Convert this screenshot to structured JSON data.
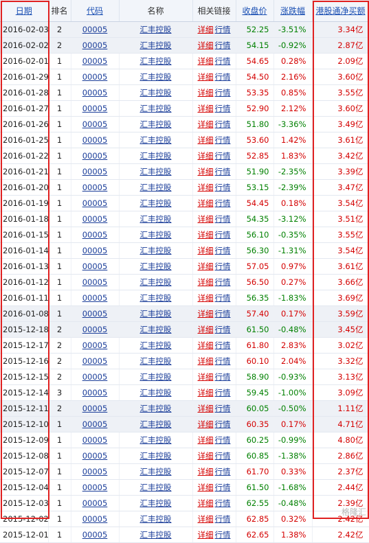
{
  "headers": {
    "date": "日期",
    "rank": "排名",
    "code": "代码",
    "name": "名称",
    "links": "相关链接",
    "close": "收盘价",
    "change": "涨跌幅",
    "net_buy": "港股通净买额"
  },
  "links": {
    "detail": "详细",
    "quote": "行情"
  },
  "colors": {
    "up": "#d40000",
    "down": "#008000",
    "highlight_box": "#e02020"
  },
  "watermark": "格隆汇",
  "rows": [
    {
      "date": "2016-02-03",
      "rank": "2",
      "code": "00005",
      "name": "汇丰控股",
      "close": "52.25",
      "change": "-3.51%",
      "net": "3.34亿",
      "dir": "down"
    },
    {
      "date": "2016-02-02",
      "rank": "2",
      "code": "00005",
      "name": "汇丰控股",
      "close": "54.15",
      "change": "-0.92%",
      "net": "2.87亿",
      "dir": "down"
    },
    {
      "date": "2016-02-01",
      "rank": "1",
      "code": "00005",
      "name": "汇丰控股",
      "close": "54.65",
      "change": "0.28%",
      "net": "2.09亿",
      "dir": "up"
    },
    {
      "date": "2016-01-29",
      "rank": "1",
      "code": "00005",
      "name": "汇丰控股",
      "close": "54.50",
      "change": "2.16%",
      "net": "3.60亿",
      "dir": "up"
    },
    {
      "date": "2016-01-28",
      "rank": "1",
      "code": "00005",
      "name": "汇丰控股",
      "close": "53.35",
      "change": "0.85%",
      "net": "3.55亿",
      "dir": "up"
    },
    {
      "date": "2016-01-27",
      "rank": "1",
      "code": "00005",
      "name": "汇丰控股",
      "close": "52.90",
      "change": "2.12%",
      "net": "3.60亿",
      "dir": "up"
    },
    {
      "date": "2016-01-26",
      "rank": "1",
      "code": "00005",
      "name": "汇丰控股",
      "close": "51.80",
      "change": "-3.36%",
      "net": "3.49亿",
      "dir": "down"
    },
    {
      "date": "2016-01-25",
      "rank": "1",
      "code": "00005",
      "name": "汇丰控股",
      "close": "53.60",
      "change": "1.42%",
      "net": "3.61亿",
      "dir": "up"
    },
    {
      "date": "2016-01-22",
      "rank": "1",
      "code": "00005",
      "name": "汇丰控股",
      "close": "52.85",
      "change": "1.83%",
      "net": "3.42亿",
      "dir": "up"
    },
    {
      "date": "2016-01-21",
      "rank": "1",
      "code": "00005",
      "name": "汇丰控股",
      "close": "51.90",
      "change": "-2.35%",
      "net": "3.39亿",
      "dir": "down"
    },
    {
      "date": "2016-01-20",
      "rank": "1",
      "code": "00005",
      "name": "汇丰控股",
      "close": "53.15",
      "change": "-2.39%",
      "net": "3.47亿",
      "dir": "down"
    },
    {
      "date": "2016-01-19",
      "rank": "1",
      "code": "00005",
      "name": "汇丰控股",
      "close": "54.45",
      "change": "0.18%",
      "net": "3.54亿",
      "dir": "up"
    },
    {
      "date": "2016-01-18",
      "rank": "1",
      "code": "00005",
      "name": "汇丰控股",
      "close": "54.35",
      "change": "-3.12%",
      "net": "3.51亿",
      "dir": "down"
    },
    {
      "date": "2016-01-15",
      "rank": "1",
      "code": "00005",
      "name": "汇丰控股",
      "close": "56.10",
      "change": "-0.35%",
      "net": "3.55亿",
      "dir": "down"
    },
    {
      "date": "2016-01-14",
      "rank": "1",
      "code": "00005",
      "name": "汇丰控股",
      "close": "56.30",
      "change": "-1.31%",
      "net": "3.54亿",
      "dir": "down"
    },
    {
      "date": "2016-01-13",
      "rank": "1",
      "code": "00005",
      "name": "汇丰控股",
      "close": "57.05",
      "change": "0.97%",
      "net": "3.61亿",
      "dir": "up"
    },
    {
      "date": "2016-01-12",
      "rank": "1",
      "code": "00005",
      "name": "汇丰控股",
      "close": "56.50",
      "change": "0.27%",
      "net": "3.66亿",
      "dir": "up"
    },
    {
      "date": "2016-01-11",
      "rank": "1",
      "code": "00005",
      "name": "汇丰控股",
      "close": "56.35",
      "change": "-1.83%",
      "net": "3.69亿",
      "dir": "down"
    },
    {
      "date": "2016-01-08",
      "rank": "1",
      "code": "00005",
      "name": "汇丰控股",
      "close": "57.40",
      "change": "0.17%",
      "net": "3.59亿",
      "dir": "up"
    },
    {
      "date": "2015-12-18",
      "rank": "2",
      "code": "00005",
      "name": "汇丰控股",
      "close": "61.50",
      "change": "-0.48%",
      "net": "3.45亿",
      "dir": "down"
    },
    {
      "date": "2015-12-17",
      "rank": "2",
      "code": "00005",
      "name": "汇丰控股",
      "close": "61.80",
      "change": "2.83%",
      "net": "3.02亿",
      "dir": "up"
    },
    {
      "date": "2015-12-16",
      "rank": "2",
      "code": "00005",
      "name": "汇丰控股",
      "close": "60.10",
      "change": "2.04%",
      "net": "3.32亿",
      "dir": "up"
    },
    {
      "date": "2015-12-15",
      "rank": "2",
      "code": "00005",
      "name": "汇丰控股",
      "close": "58.90",
      "change": "-0.93%",
      "net": "3.13亿",
      "dir": "down"
    },
    {
      "date": "2015-12-14",
      "rank": "3",
      "code": "00005",
      "name": "汇丰控股",
      "close": "59.45",
      "change": "-1.00%",
      "net": "3.09亿",
      "dir": "down"
    },
    {
      "date": "2015-12-11",
      "rank": "2",
      "code": "00005",
      "name": "汇丰控股",
      "close": "60.05",
      "change": "-0.50%",
      "net": "1.11亿",
      "dir": "down"
    },
    {
      "date": "2015-12-10",
      "rank": "1",
      "code": "00005",
      "name": "汇丰控股",
      "close": "60.35",
      "change": "0.17%",
      "net": "4.71亿",
      "dir": "up"
    },
    {
      "date": "2015-12-09",
      "rank": "1",
      "code": "00005",
      "name": "汇丰控股",
      "close": "60.25",
      "change": "-0.99%",
      "net": "4.80亿",
      "dir": "down"
    },
    {
      "date": "2015-12-08",
      "rank": "1",
      "code": "00005",
      "name": "汇丰控股",
      "close": "60.85",
      "change": "-1.38%",
      "net": "2.86亿",
      "dir": "down"
    },
    {
      "date": "2015-12-07",
      "rank": "1",
      "code": "00005",
      "name": "汇丰控股",
      "close": "61.70",
      "change": "0.33%",
      "net": "2.37亿",
      "dir": "up"
    },
    {
      "date": "2015-12-04",
      "rank": "1",
      "code": "00005",
      "name": "汇丰控股",
      "close": "61.50",
      "change": "-1.68%",
      "net": "2.44亿",
      "dir": "down"
    },
    {
      "date": "2015-12-03",
      "rank": "1",
      "code": "00005",
      "name": "汇丰控股",
      "close": "62.55",
      "change": "-0.48%",
      "net": "2.39亿",
      "dir": "down"
    },
    {
      "date": "2015-12-02",
      "rank": "1",
      "code": "00005",
      "name": "汇丰控股",
      "close": "62.85",
      "change": "0.32%",
      "net": "2.42亿",
      "dir": "up"
    },
    {
      "date": "2015-12-01",
      "rank": "1",
      "code": "00005",
      "name": "汇丰控股",
      "close": "62.65",
      "change": "1.38%",
      "net": "2.42亿",
      "dir": "up"
    }
  ]
}
